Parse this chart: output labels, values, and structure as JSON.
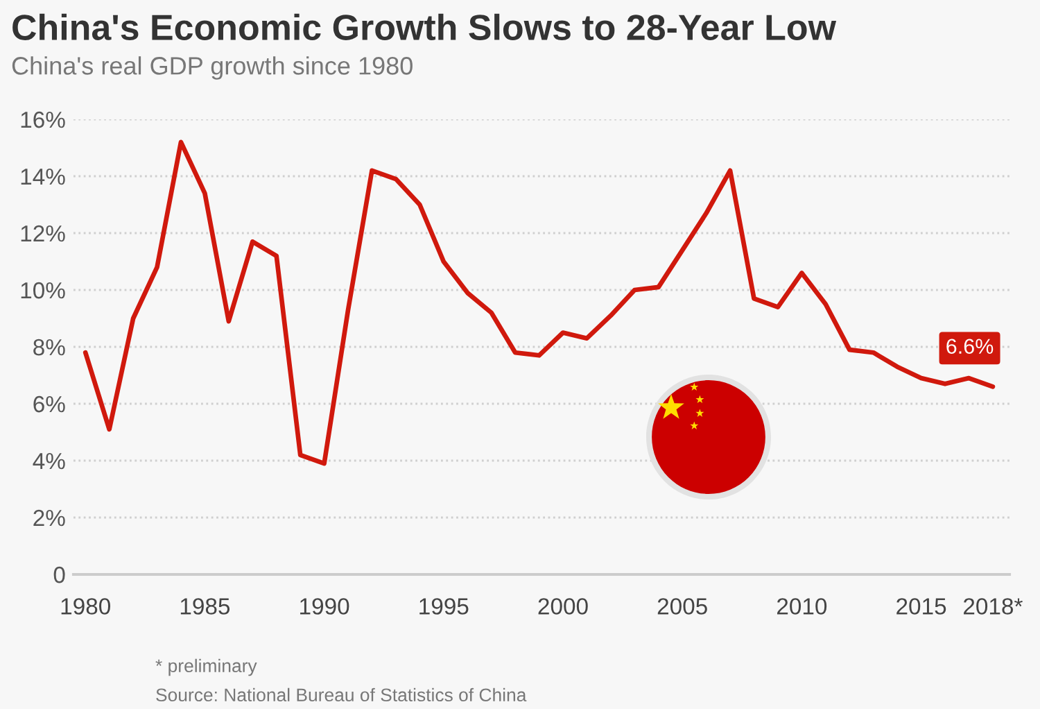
{
  "chart_data": {
    "type": "line",
    "title": "China's Economic Growth Slows to 28-Year Low",
    "subtitle": "China's real GDP growth since 1980",
    "x": [
      1980,
      1981,
      1982,
      1983,
      1984,
      1985,
      1986,
      1987,
      1988,
      1989,
      1990,
      1991,
      1992,
      1993,
      1994,
      1995,
      1996,
      1997,
      1998,
      1999,
      2000,
      2001,
      2002,
      2003,
      2004,
      2005,
      2006,
      2007,
      2008,
      2009,
      2010,
      2011,
      2012,
      2013,
      2014,
      2015,
      2016,
      2017,
      2018
    ],
    "series": [
      {
        "color": "#d0190d",
        "values": [
          7.8,
          5.1,
          9.0,
          10.8,
          15.2,
          13.4,
          8.9,
          11.7,
          11.2,
          4.2,
          3.9,
          9.3,
          14.2,
          13.9,
          13.0,
          11.0,
          9.9,
          9.2,
          7.8,
          7.7,
          8.5,
          8.3,
          9.1,
          10.0,
          10.1,
          11.4,
          12.7,
          14.2,
          9.7,
          9.4,
          10.6,
          9.5,
          7.9,
          7.8,
          7.3,
          6.9,
          6.7,
          6.9,
          6.6
        ],
        "value_labels": [
          null,
          null,
          null,
          null,
          null,
          null,
          null,
          null,
          null,
          null,
          null,
          null,
          null,
          null,
          null,
          null,
          null,
          null,
          null,
          null,
          null,
          null,
          null,
          null,
          null,
          null,
          null,
          null,
          null,
          null,
          null,
          null,
          null,
          null,
          null,
          null,
          null,
          null,
          "6.6%"
        ]
      }
    ],
    "xlim": [
      1979.5,
      2018.7
    ],
    "xticks": [
      1980,
      1985,
      1990,
      1995,
      2000,
      2005,
      2010,
      2015,
      {
        "value": 2018,
        "label": "2018*"
      }
    ],
    "ylim": [
      0,
      16
    ],
    "yticks": [
      0,
      {
        "value": 2,
        "label": "2%"
      },
      {
        "value": 4,
        "label": "4%"
      },
      {
        "value": 6,
        "label": "6%"
      },
      {
        "value": 8,
        "label": "8%"
      },
      {
        "value": 10,
        "label": "10%"
      },
      {
        "value": 12,
        "label": "12%"
      },
      {
        "value": 14,
        "label": "14%"
      },
      {
        "value": 16,
        "label": "16%"
      }
    ],
    "grid": "y",
    "annotations": [
      "* preliminary",
      "Source: National Bureau of Statistics of China"
    ]
  }
}
